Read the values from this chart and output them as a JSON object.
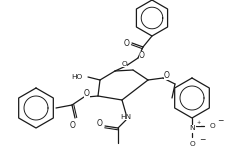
{
  "bg": "#ffffff",
  "lc": "#1a1a1a",
  "lw": 0.9,
  "fs": 5.0,
  "figsize": [
    2.34,
    1.55
  ],
  "dpi": 100,
  "xlim": [
    0,
    234
  ],
  "ylim": [
    0,
    155
  ]
}
